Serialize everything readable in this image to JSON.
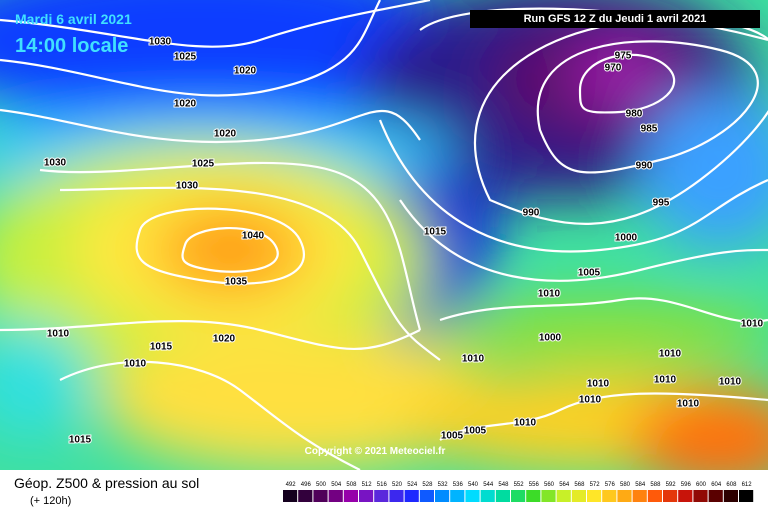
{
  "header": {
    "date": "Mardi 6 avril 2021",
    "time": "14:00 locale",
    "run": "Run GFS 12 Z du Jeudi 1 avril 2021"
  },
  "isobar_labels": [
    1030,
    1025,
    1020,
    1020,
    1020,
    1030,
    1025,
    1030,
    1040,
    1035,
    1015,
    975,
    970,
    980,
    985,
    990,
    995,
    990,
    1000,
    1005,
    1010,
    1000,
    1010,
    1015,
    1020,
    1010,
    1010,
    1010,
    1010,
    1010,
    1010,
    1010,
    1010,
    1010,
    1010,
    1005,
    1005,
    1015
  ],
  "copyright": "Copyright © 2021 Meteociel.fr",
  "footer": {
    "title": "Géop. Z500 & pression au sol",
    "lead": "(+ 120h)"
  },
  "color_scale": [
    492,
    496,
    500,
    504,
    508,
    512,
    516,
    520,
    524,
    528,
    532,
    536,
    540,
    544,
    548,
    552,
    556,
    560,
    564,
    568,
    572,
    576,
    580,
    584,
    588,
    592,
    596,
    600,
    604,
    608,
    612
  ]
}
